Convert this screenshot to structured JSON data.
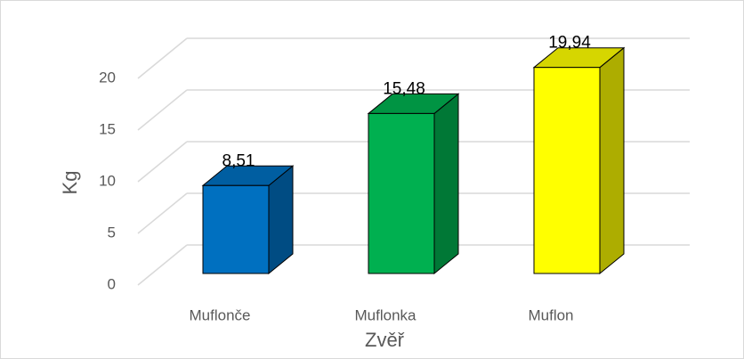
{
  "chart_data": {
    "type": "bar3d",
    "categories": [
      "Muflonče",
      "Muflonka",
      "Muflon"
    ],
    "values": [
      8.51,
      15.48,
      19.94
    ],
    "value_labels": [
      "8,51",
      "15,48",
      "19,94"
    ],
    "colors": [
      "#0070c0",
      "#00b050",
      "#ffff00"
    ],
    "ylabel": "Kg",
    "xlabel": "Zvěř",
    "ylim": [
      0,
      20
    ],
    "yticks": [
      0,
      5,
      10,
      15,
      20
    ],
    "grid": true
  }
}
